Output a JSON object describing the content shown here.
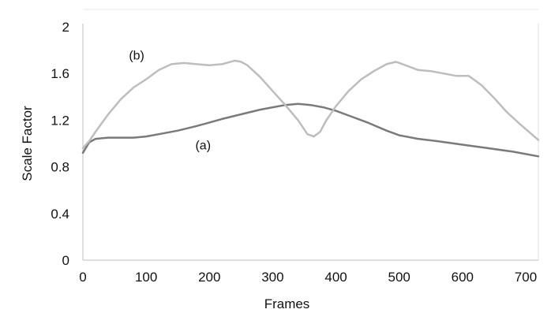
{
  "chart_data": {
    "type": "line",
    "title": "",
    "xlabel": "Frames",
    "ylabel": "Scale Factor",
    "xlim": [
      0,
      720
    ],
    "ylim": [
      0,
      2
    ],
    "xticks": [
      0,
      100,
      200,
      300,
      400,
      500,
      600,
      700
    ],
    "xtick_labels": [
      "0",
      "100",
      "200",
      "300",
      "400",
      "500",
      "600",
      "700"
    ],
    "yticks": [
      0,
      0.4,
      0.8,
      1.2,
      1.6,
      2
    ],
    "ytick_labels": [
      "0",
      "0.4",
      "0.8",
      "1.2",
      "1.6",
      "2"
    ],
    "grid": false,
    "legend": "none",
    "series": [
      {
        "name": "(a)",
        "color": "#7a7a7a",
        "x": [
          0,
          10,
          20,
          40,
          60,
          80,
          100,
          120,
          150,
          180,
          200,
          220,
          250,
          280,
          300,
          320,
          340,
          360,
          380,
          400,
          420,
          450,
          480,
          500,
          530,
          560,
          600,
          640,
          680,
          720
        ],
        "y": [
          0.92,
          1.01,
          1.04,
          1.05,
          1.05,
          1.05,
          1.06,
          1.08,
          1.11,
          1.15,
          1.18,
          1.21,
          1.25,
          1.29,
          1.31,
          1.33,
          1.34,
          1.33,
          1.31,
          1.28,
          1.24,
          1.18,
          1.11,
          1.07,
          1.04,
          1.02,
          0.99,
          0.96,
          0.93,
          0.89
        ]
      },
      {
        "name": "(b)",
        "color": "#bdbdbd",
        "x": [
          0,
          10,
          20,
          40,
          60,
          80,
          100,
          120,
          140,
          160,
          180,
          200,
          220,
          240,
          250,
          260,
          280,
          300,
          320,
          340,
          355,
          365,
          375,
          385,
          400,
          420,
          440,
          460,
          480,
          495,
          510,
          530,
          550,
          570,
          590,
          610,
          630,
          650,
          670,
          690,
          705,
          720
        ],
        "y": [
          0.96,
          1.02,
          1.1,
          1.25,
          1.38,
          1.48,
          1.55,
          1.63,
          1.68,
          1.69,
          1.68,
          1.67,
          1.68,
          1.71,
          1.7,
          1.67,
          1.57,
          1.45,
          1.33,
          1.2,
          1.08,
          1.06,
          1.1,
          1.2,
          1.32,
          1.45,
          1.55,
          1.62,
          1.68,
          1.7,
          1.67,
          1.63,
          1.62,
          1.6,
          1.58,
          1.58,
          1.5,
          1.39,
          1.27,
          1.17,
          1.1,
          1.03
        ]
      }
    ],
    "annotations": [
      {
        "text": "(b)",
        "x": 85,
        "y": 1.72
      },
      {
        "text": "(a)",
        "x": 190,
        "y": 0.95
      }
    ]
  }
}
